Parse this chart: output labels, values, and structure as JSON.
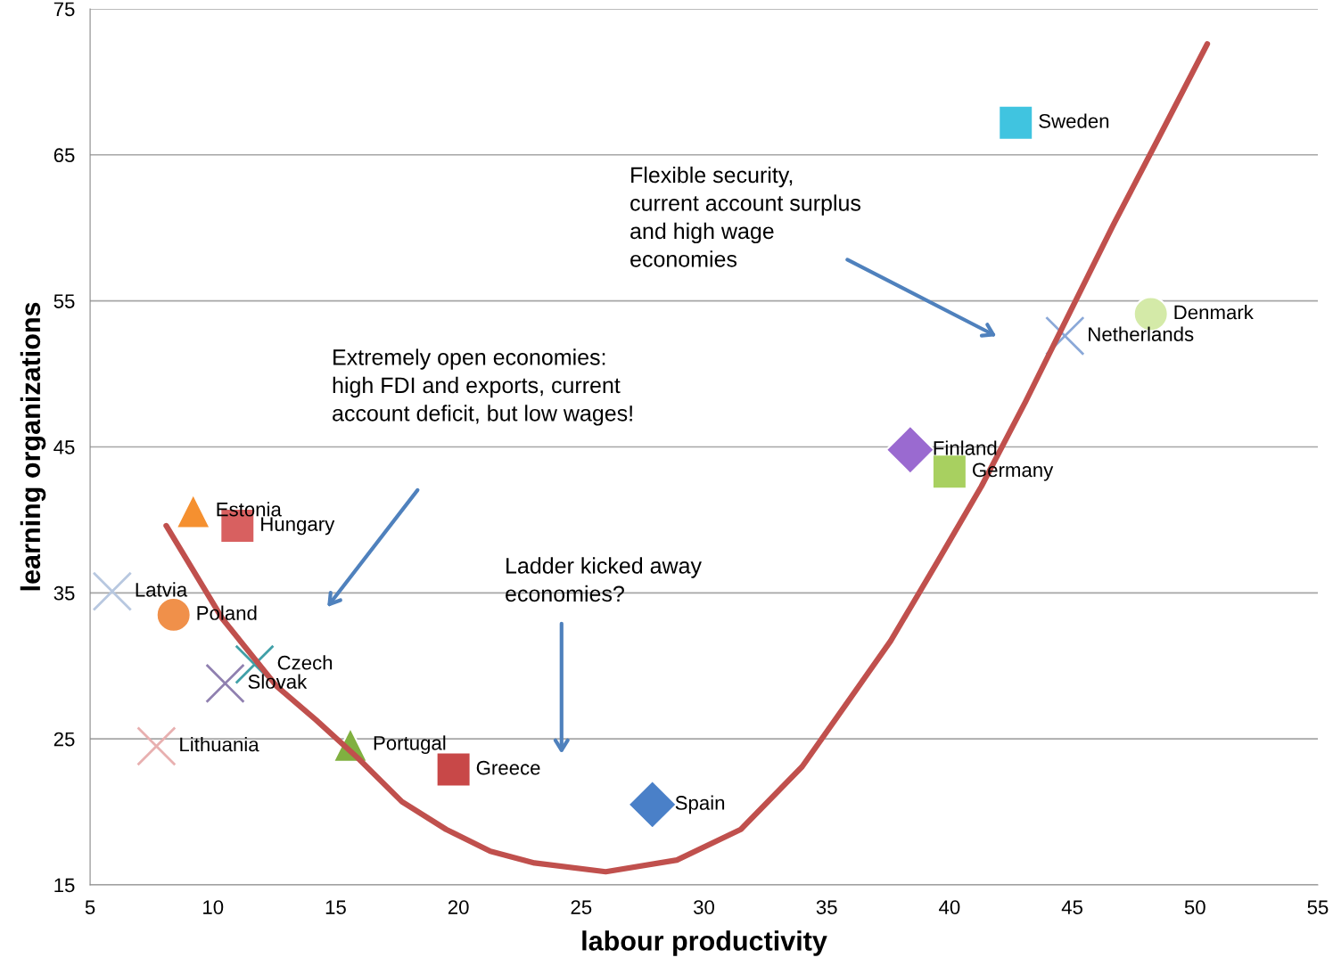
{
  "chart_data": {
    "type": "scatter",
    "xlabel": "labour productivity",
    "ylabel": "learning organizations",
    "xlim": [
      5,
      55
    ],
    "xticks": [
      5,
      10,
      15,
      20,
      25,
      30,
      35,
      40,
      45,
      50,
      55
    ],
    "ylim": [
      15,
      75
    ],
    "yticks": [
      15,
      25,
      35,
      45,
      55,
      65,
      75
    ],
    "grid": "y",
    "annotations": [
      "Flexible security,\ncurrent account surplus\nand high wage\neconomies",
      "Extremely open economies:\nhigh FDI and exports, current\naccount deficit, but low wages!",
      "Ladder kicked away\neconomies?"
    ],
    "series": [
      {
        "name": "Sweden",
        "color": "#40c4e0",
        "marker": "square",
        "x": [
          42.7
        ],
        "values": [
          67.2
        ]
      },
      {
        "name": "Denmark",
        "color": "#d4eaa8",
        "marker": "circle",
        "x": [
          48.2
        ],
        "values": [
          54.1
        ]
      },
      {
        "name": "Netherlands",
        "color": "#8aa8d8",
        "marker": "cross",
        "x": [
          44.7
        ],
        "values": [
          52.6
        ]
      },
      {
        "name": "Finland",
        "color": "#9a6ad0",
        "marker": "diamond",
        "x": [
          38.4
        ],
        "values": [
          44.8
        ]
      },
      {
        "name": "Germany",
        "color": "#a8d060",
        "marker": "square",
        "x": [
          40.0
        ],
        "values": [
          43.3
        ]
      },
      {
        "name": "Estonia",
        "color": "#f59030",
        "marker": "triangle",
        "x": [
          9.2
        ],
        "values": [
          40.6
        ]
      },
      {
        "name": "Hungary",
        "color": "#d86060",
        "marker": "square",
        "x": [
          11.0
        ],
        "values": [
          39.6
        ]
      },
      {
        "name": "Latvia",
        "color": "#b8c8e0",
        "marker": "cross",
        "x": [
          5.9
        ],
        "values": [
          35.1
        ]
      },
      {
        "name": "Poland",
        "color": "#f0904a",
        "marker": "circle",
        "x": [
          8.4
        ],
        "values": [
          33.5
        ]
      },
      {
        "name": "Czech",
        "color": "#40a0a8",
        "marker": "cross",
        "x": [
          11.7
        ],
        "values": [
          30.1
        ]
      },
      {
        "name": "Slovak",
        "color": "#9080b0",
        "marker": "cross",
        "x": [
          10.5
        ],
        "values": [
          28.8
        ]
      },
      {
        "name": "Lithuania",
        "color": "#e8b0b0",
        "marker": "cross",
        "x": [
          7.7
        ],
        "values": [
          24.5
        ]
      },
      {
        "name": "Portugal",
        "color": "#80b040",
        "marker": "triangle",
        "x": [
          15.6
        ],
        "values": [
          24.6
        ]
      },
      {
        "name": "Greece",
        "color": "#c84848",
        "marker": "square",
        "x": [
          19.8
        ],
        "values": [
          22.9
        ]
      },
      {
        "name": "Spain",
        "color": "#4a80c8",
        "marker": "diamond",
        "x": [
          27.9
        ],
        "values": [
          20.5
        ]
      },
      {
        "type": "line",
        "color": "#c0504d",
        "x": [
          8.1,
          10.4,
          12.6,
          14.2,
          15.9,
          17.7,
          19.5,
          21.3,
          23.1,
          26.0,
          28.9,
          31.5,
          34.0,
          35.8,
          37.6,
          39.5,
          41.3,
          43.1,
          44.9,
          46.7,
          48.5,
          50.5
        ],
        "values": [
          39.6,
          33.2,
          28.6,
          26.3,
          23.7,
          20.7,
          18.8,
          17.3,
          16.5,
          15.9,
          16.7,
          18.8,
          23.1,
          27.4,
          31.7,
          37.1,
          42.3,
          48.1,
          54.2,
          60.3,
          66.1,
          72.6
        ]
      }
    ]
  }
}
